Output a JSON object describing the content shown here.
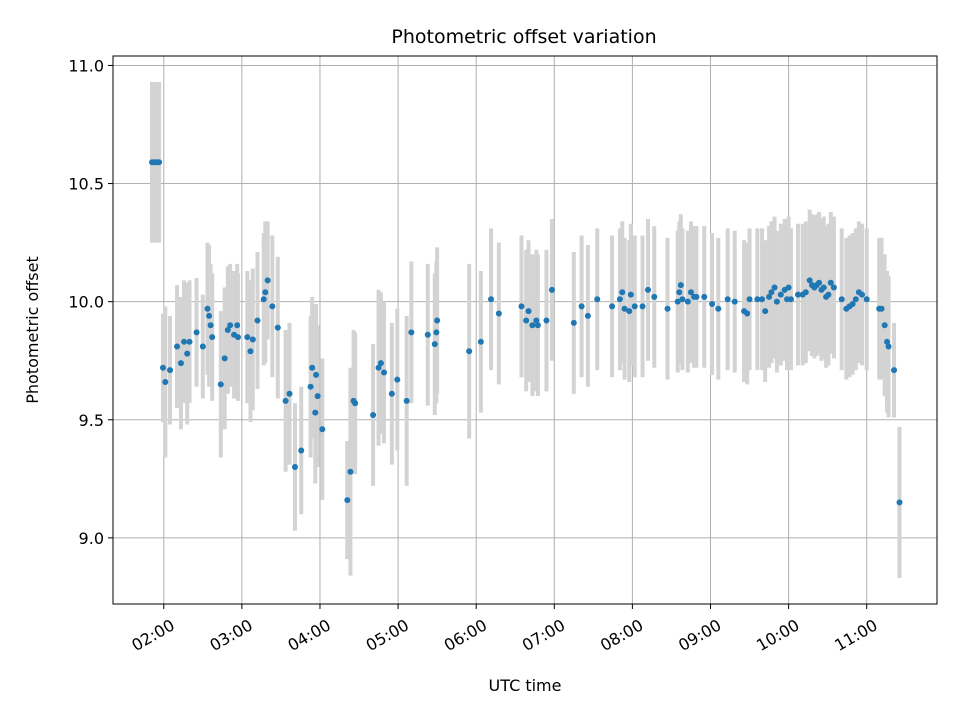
{
  "chart_data": {
    "type": "scatter",
    "title": "Photometric offset variation",
    "xlabel": "UTC time",
    "ylabel": "Photometric offset",
    "x_unit": "hours UTC",
    "xlim": [
      1.35,
      11.9
    ],
    "ylim": [
      8.72,
      11.04
    ],
    "x_ticks": [
      {
        "value": 2,
        "label": "02:00"
      },
      {
        "value": 3,
        "label": "03:00"
      },
      {
        "value": 4,
        "label": "04:00"
      },
      {
        "value": 5,
        "label": "05:00"
      },
      {
        "value": 6,
        "label": "06:00"
      },
      {
        "value": 7,
        "label": "07:00"
      },
      {
        "value": 8,
        "label": "08:00"
      },
      {
        "value": 9,
        "label": "09:00"
      },
      {
        "value": 10,
        "label": "10:00"
      },
      {
        "value": 11,
        "label": "11:00"
      }
    ],
    "y_ticks": [
      {
        "value": 9.0,
        "label": "9.0"
      },
      {
        "value": 9.5,
        "label": "9.5"
      },
      {
        "value": 10.0,
        "label": "10.0"
      },
      {
        "value": 10.5,
        "label": "10.5"
      },
      {
        "value": 11.0,
        "label": "11.0"
      }
    ],
    "grid": true,
    "point_color": "#1f77b4",
    "errorbar_color": "#d3d3d3",
    "points": [
      [
        1.85,
        10.59,
        0.34
      ],
      [
        1.88,
        10.59,
        0.34
      ],
      [
        1.91,
        10.59,
        0.34
      ],
      [
        1.94,
        10.59,
        0.34
      ],
      [
        1.99,
        9.72,
        0.23
      ],
      [
        2.02,
        9.66,
        0.32
      ],
      [
        2.08,
        9.71,
        0.23
      ],
      [
        2.17,
        9.81,
        0.26
      ],
      [
        2.22,
        9.74,
        0.28
      ],
      [
        2.26,
        9.83,
        0.26
      ],
      [
        2.3,
        9.78,
        0.3
      ],
      [
        2.33,
        9.83,
        0.26
      ],
      [
        2.42,
        9.87,
        0.23
      ],
      [
        2.5,
        9.81,
        0.22
      ],
      [
        2.56,
        9.97,
        0.28
      ],
      [
        2.58,
        9.94,
        0.3
      ],
      [
        2.6,
        9.9,
        0.26
      ],
      [
        2.62,
        9.85,
        0.27
      ],
      [
        2.73,
        9.65,
        0.31
      ],
      [
        2.78,
        9.76,
        0.3
      ],
      [
        2.82,
        9.88,
        0.27
      ],
      [
        2.85,
        9.9,
        0.26
      ],
      [
        2.9,
        9.86,
        0.27
      ],
      [
        2.94,
        9.9,
        0.26
      ],
      [
        2.95,
        9.85,
        0.27
      ],
      [
        3.07,
        9.85,
        0.28
      ],
      [
        3.11,
        9.79,
        0.3
      ],
      [
        3.14,
        9.84,
        0.3
      ],
      [
        3.2,
        9.92,
        0.29
      ],
      [
        3.28,
        10.01,
        0.28
      ],
      [
        3.3,
        10.04,
        0.3
      ],
      [
        3.33,
        10.09,
        0.25
      ],
      [
        3.39,
        9.98,
        0.3
      ],
      [
        3.46,
        9.89,
        0.3
      ],
      [
        3.56,
        9.58,
        0.3
      ],
      [
        3.61,
        9.61,
        0.3
      ],
      [
        3.68,
        9.3,
        0.27
      ],
      [
        3.76,
        9.37,
        0.27
      ],
      [
        3.88,
        9.64,
        0.3
      ],
      [
        3.9,
        9.72,
        0.3
      ],
      [
        3.94,
        9.53,
        0.3
      ],
      [
        3.95,
        9.69,
        0.3
      ],
      [
        3.97,
        9.6,
        0.3
      ],
      [
        4.03,
        9.46,
        0.3
      ],
      [
        4.35,
        9.16,
        0.25
      ],
      [
        4.39,
        9.28,
        0.44
      ],
      [
        4.43,
        9.58,
        0.3
      ],
      [
        4.45,
        9.57,
        0.3
      ],
      [
        4.68,
        9.52,
        0.3
      ],
      [
        4.75,
        9.72,
        0.33
      ],
      [
        4.78,
        9.74,
        0.3
      ],
      [
        4.82,
        9.7,
        0.3
      ],
      [
        4.92,
        9.61,
        0.3
      ],
      [
        4.99,
        9.67,
        0.3
      ],
      [
        5.11,
        9.58,
        0.36
      ],
      [
        5.17,
        9.87,
        0.3
      ],
      [
        5.38,
        9.86,
        0.3
      ],
      [
        5.47,
        9.82,
        0.3
      ],
      [
        5.49,
        9.87,
        0.3
      ],
      [
        5.5,
        9.92,
        0.31
      ],
      [
        5.91,
        9.79,
        0.37
      ],
      [
        6.06,
        9.83,
        0.3
      ],
      [
        6.19,
        10.01,
        0.3
      ],
      [
        6.29,
        9.95,
        0.3
      ],
      [
        6.58,
        9.98,
        0.3
      ],
      [
        6.64,
        9.92,
        0.3
      ],
      [
        6.67,
        9.96,
        0.3
      ],
      [
        6.72,
        9.9,
        0.3
      ],
      [
        6.77,
        9.92,
        0.3
      ],
      [
        6.79,
        9.9,
        0.3
      ],
      [
        6.9,
        9.92,
        0.3
      ],
      [
        6.97,
        10.05,
        0.3
      ],
      [
        7.25,
        9.91,
        0.3
      ],
      [
        7.35,
        9.98,
        0.3
      ],
      [
        7.43,
        9.94,
        0.3
      ],
      [
        7.55,
        10.01,
        0.3
      ],
      [
        7.74,
        9.98,
        0.3
      ],
      [
        7.84,
        10.01,
        0.3
      ],
      [
        7.87,
        10.04,
        0.3
      ],
      [
        7.9,
        9.97,
        0.3
      ],
      [
        7.96,
        9.96,
        0.3
      ],
      [
        7.98,
        10.03,
        0.3
      ],
      [
        8.03,
        9.98,
        0.3
      ],
      [
        8.13,
        9.98,
        0.3
      ],
      [
        8.2,
        10.05,
        0.3
      ],
      [
        8.28,
        10.02,
        0.3
      ],
      [
        8.45,
        9.97,
        0.3
      ],
      [
        8.58,
        10.0,
        0.3
      ],
      [
        8.6,
        10.04,
        0.3
      ],
      [
        8.62,
        10.07,
        0.3
      ],
      [
        8.64,
        10.01,
        0.3
      ],
      [
        8.71,
        10.0,
        0.3
      ],
      [
        8.75,
        10.04,
        0.3
      ],
      [
        8.79,
        10.02,
        0.3
      ],
      [
        8.82,
        10.02,
        0.3
      ],
      [
        8.92,
        10.02,
        0.3
      ],
      [
        9.02,
        9.99,
        0.3
      ],
      [
        9.1,
        9.97,
        0.3
      ],
      [
        9.22,
        10.01,
        0.3
      ],
      [
        9.31,
        10.0,
        0.3
      ],
      [
        9.43,
        9.96,
        0.3
      ],
      [
        9.47,
        9.95,
        0.3
      ],
      [
        9.5,
        10.01,
        0.3
      ],
      [
        9.6,
        10.01,
        0.3
      ],
      [
        9.66,
        10.01,
        0.3
      ],
      [
        9.7,
        9.96,
        0.3
      ],
      [
        9.75,
        10.02,
        0.3
      ],
      [
        9.78,
        10.04,
        0.3
      ],
      [
        9.82,
        10.06,
        0.3
      ],
      [
        9.85,
        10.0,
        0.3
      ],
      [
        9.9,
        10.03,
        0.3
      ],
      [
        9.95,
        10.05,
        0.3
      ],
      [
        9.98,
        10.01,
        0.3
      ],
      [
        10.0,
        10.06,
        0.3
      ],
      [
        10.03,
        10.01,
        0.3
      ],
      [
        10.12,
        10.03,
        0.3
      ],
      [
        10.18,
        10.03,
        0.3
      ],
      [
        10.22,
        10.04,
        0.3
      ],
      [
        10.27,
        10.09,
        0.3
      ],
      [
        10.3,
        10.07,
        0.3
      ],
      [
        10.33,
        10.06,
        0.3
      ],
      [
        10.36,
        10.07,
        0.3
      ],
      [
        10.39,
        10.08,
        0.3
      ],
      [
        10.42,
        10.05,
        0.3
      ],
      [
        10.45,
        10.06,
        0.3
      ],
      [
        10.48,
        10.02,
        0.3
      ],
      [
        10.51,
        10.03,
        0.3
      ],
      [
        10.54,
        10.08,
        0.3
      ],
      [
        10.58,
        10.06,
        0.3
      ],
      [
        10.68,
        10.01,
        0.3
      ],
      [
        10.74,
        9.97,
        0.3
      ],
      [
        10.78,
        9.98,
        0.3
      ],
      [
        10.82,
        9.99,
        0.3
      ],
      [
        10.86,
        10.01,
        0.3
      ],
      [
        10.9,
        10.04,
        0.3
      ],
      [
        10.94,
        10.03,
        0.3
      ],
      [
        11.0,
        10.01,
        0.3
      ],
      [
        11.16,
        9.97,
        0.3
      ],
      [
        11.19,
        9.97,
        0.3
      ],
      [
        11.23,
        9.9,
        0.3
      ],
      [
        11.26,
        9.83,
        0.3
      ],
      [
        11.28,
        9.81,
        0.3
      ],
      [
        11.35,
        9.71,
        0.2
      ],
      [
        11.42,
        9.15,
        0.32
      ]
    ]
  }
}
